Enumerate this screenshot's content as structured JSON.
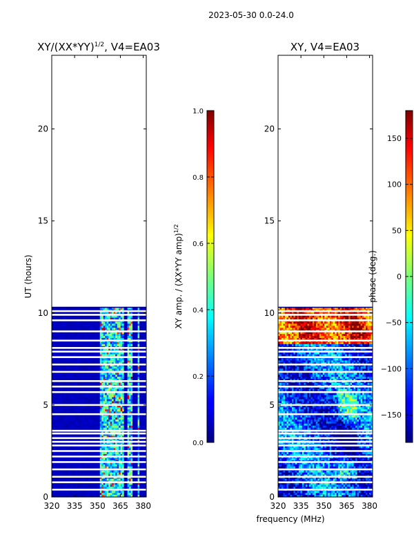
{
  "suptitle": "2023-05-30 0.0-24.0",
  "xlabel_common": "frequency (MHz)",
  "chart_data": [
    {
      "type": "heatmap",
      "title_base": "XY/(XX*YY)",
      "title_exp": "1/2",
      "title_suffix": ", V4=EA03",
      "xlabel": "",
      "ylabel": "UT (hours)",
      "xlim": [
        320,
        382
      ],
      "ylim": [
        0,
        24
      ],
      "xticks": [
        320,
        335,
        350,
        365,
        380
      ],
      "yticks": [
        0,
        5,
        10,
        15,
        20
      ],
      "colorbar": {
        "label_base": "XY amp. / (XX*YY amp)",
        "label_exp": "1/2",
        "range": [
          0.0,
          1.0
        ],
        "ticks": [
          "0.0",
          "0.2",
          "0.4",
          "0.6",
          "0.8",
          "1.0"
        ],
        "colormap": "jet"
      },
      "data_time_range_hours": [
        0,
        10.3
      ],
      "gap_rows_hours": [
        0.4,
        0.8,
        1.1,
        1.5,
        1.9,
        2.2,
        2.5,
        2.8,
        3.0,
        3.2,
        3.45,
        3.6,
        4.5,
        5.0,
        5.7,
        6.0,
        6.3,
        6.8,
        7.2,
        7.6,
        7.9,
        8.1,
        8.5,
        9.0,
        9.6,
        9.9,
        10.1
      ],
      "active_channels_mhz": [
        [
          352,
          367
        ],
        [
          370,
          373
        ],
        [
          376,
          378
        ]
      ]
    },
    {
      "type": "heatmap",
      "title": "XY, V4=EA03",
      "xlabel": "frequency (MHz)",
      "ylabel": "",
      "xlim": [
        320,
        382
      ],
      "ylim": [
        0,
        24
      ],
      "xticks": [
        320,
        335,
        350,
        365,
        380
      ],
      "yticks": [
        0,
        5,
        10,
        15,
        20
      ],
      "colorbar": {
        "label": "phase (deg.)",
        "range": [
          -180,
          180
        ],
        "ticks": [
          "−150",
          "−100",
          "−50",
          "0",
          "50",
          "100",
          "150"
        ],
        "colormap": "jet"
      },
      "data_time_range_hours": [
        0,
        10.3
      ]
    }
  ]
}
